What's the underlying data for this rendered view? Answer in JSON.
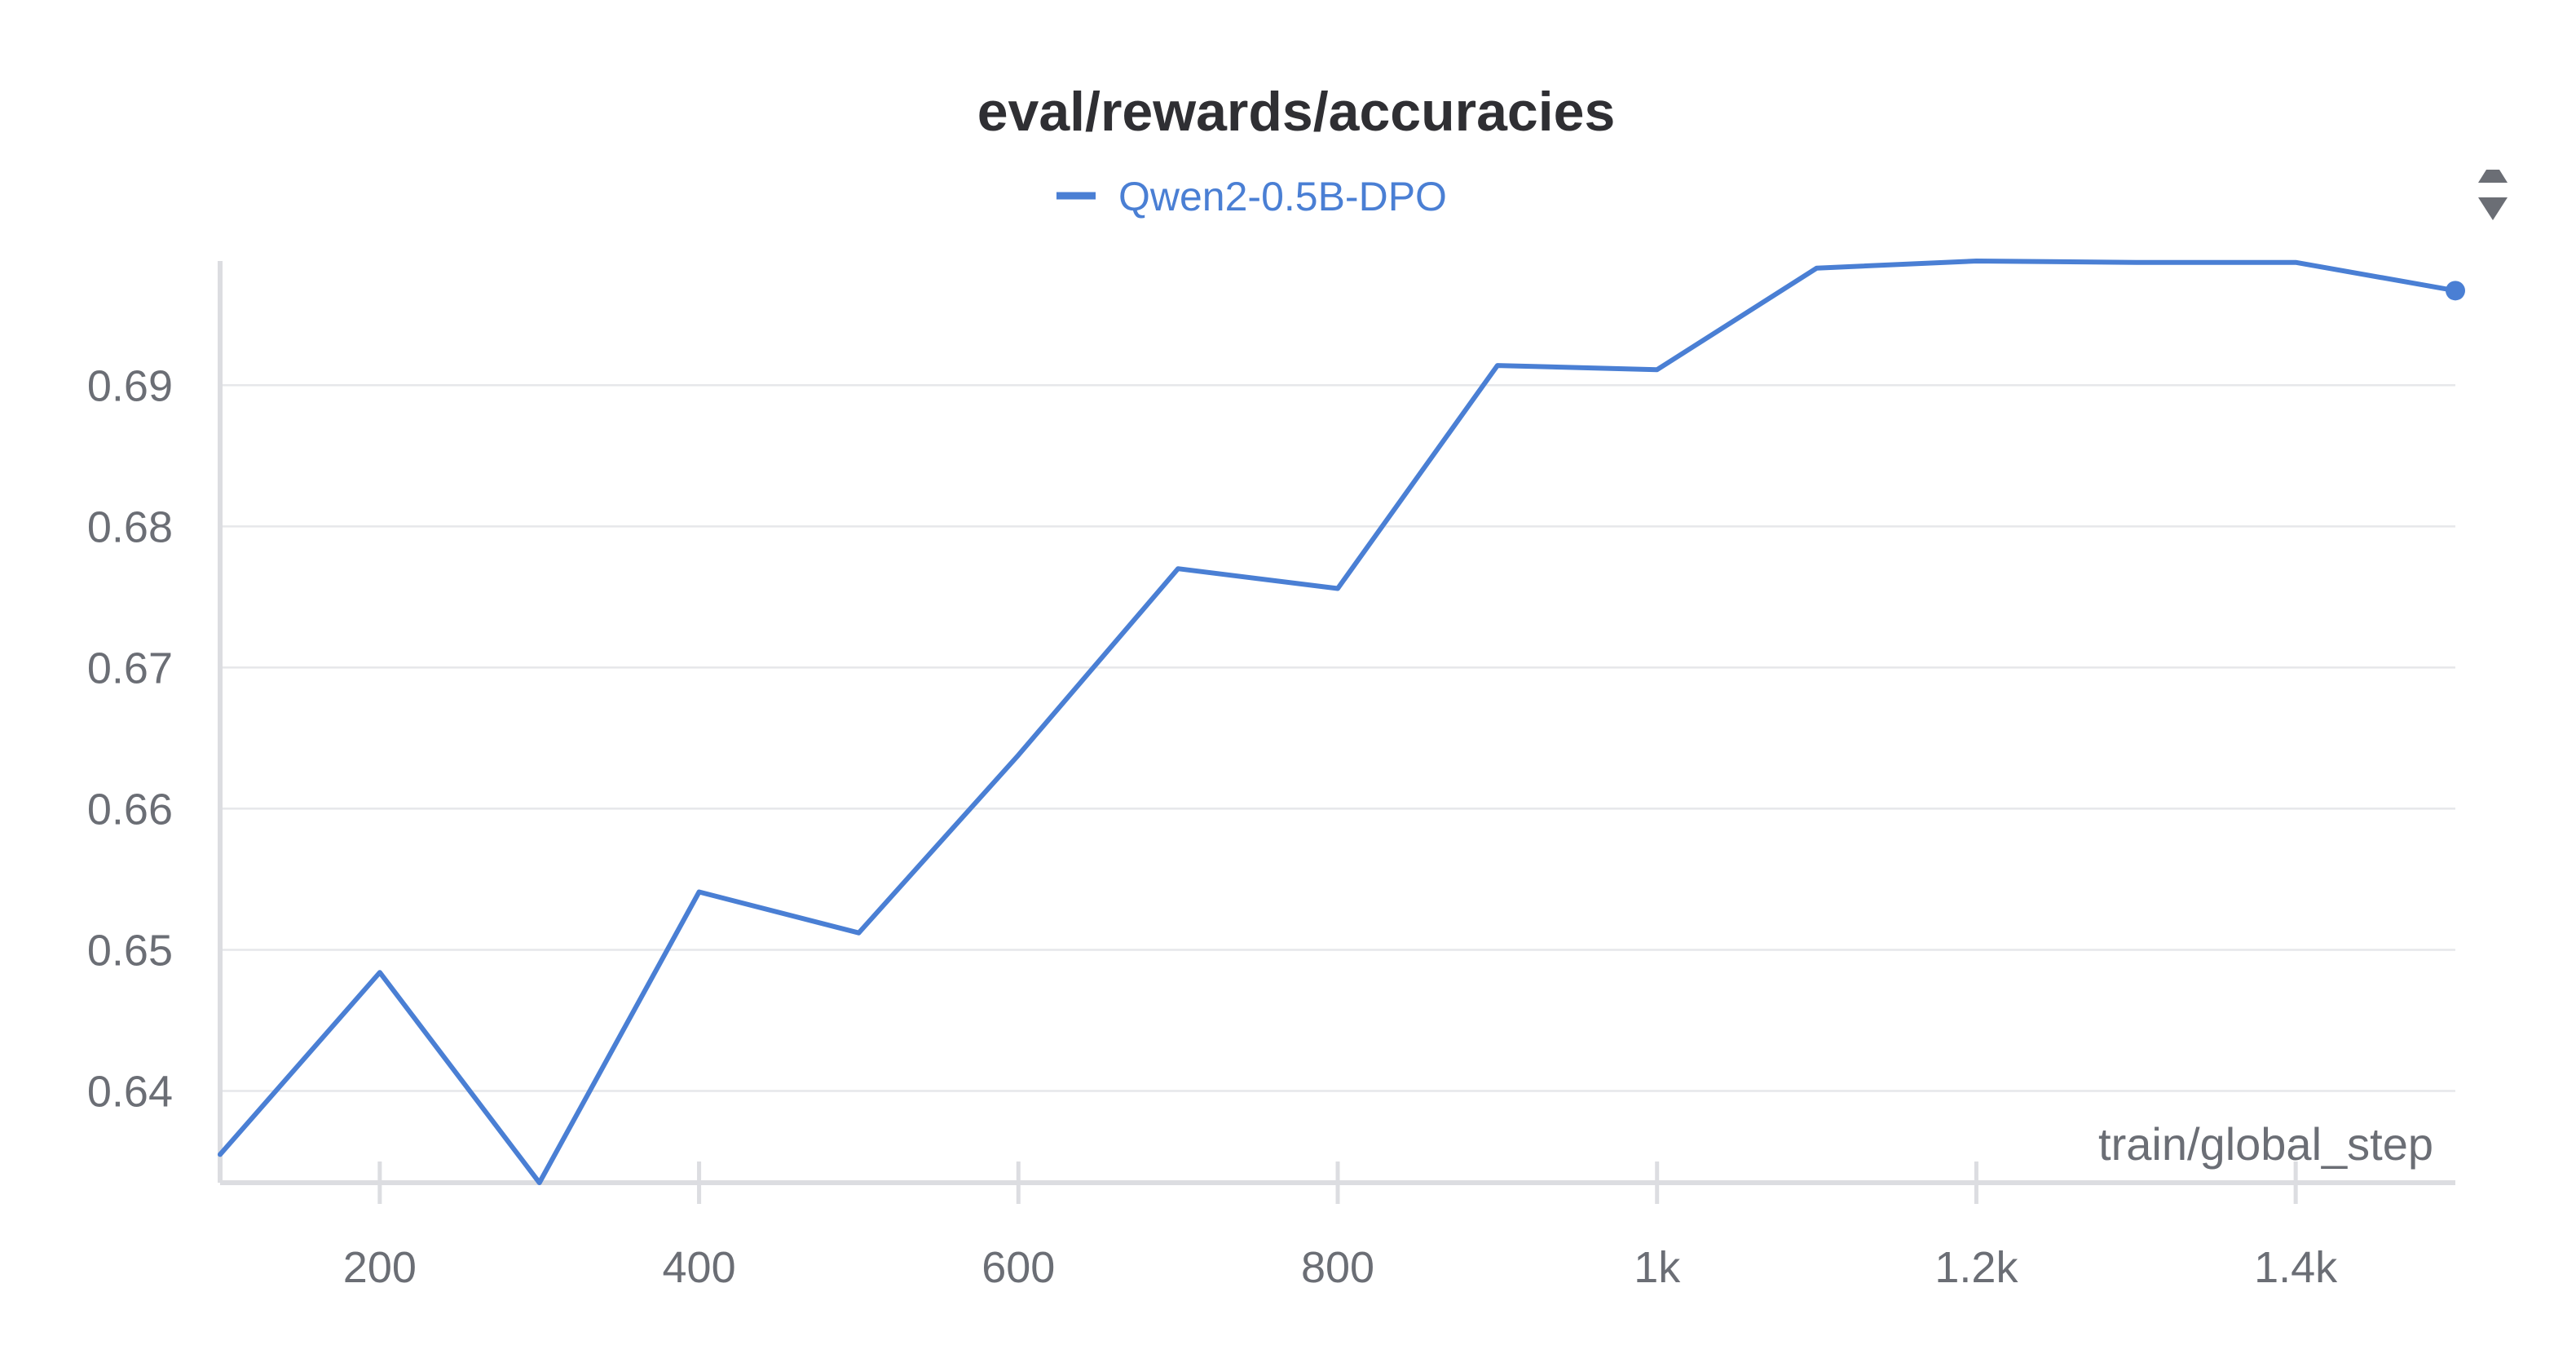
{
  "chart_data": {
    "type": "line",
    "title": "eval/rewards/accuracies",
    "xlabel": "train/global_step",
    "ylabel": "",
    "xlim": [
      100,
      1500
    ],
    "ylim": [
      0.6335,
      0.6988
    ],
    "grid": true,
    "legend_position": "top-center",
    "x_ticks": [
      {
        "value": 200,
        "label": "200"
      },
      {
        "value": 400,
        "label": "400"
      },
      {
        "value": 600,
        "label": "600"
      },
      {
        "value": 800,
        "label": "800"
      },
      {
        "value": 1000,
        "label": "1k"
      },
      {
        "value": 1200,
        "label": "1.2k"
      },
      {
        "value": 1400,
        "label": "1.4k"
      }
    ],
    "y_ticks": [
      {
        "value": 0.64,
        "label": "0.64"
      },
      {
        "value": 0.65,
        "label": "0.65"
      },
      {
        "value": 0.66,
        "label": "0.66"
      },
      {
        "value": 0.67,
        "label": "0.67"
      },
      {
        "value": 0.68,
        "label": "0.68"
      },
      {
        "value": 0.69,
        "label": "0.69"
      }
    ],
    "series": [
      {
        "name": "Qwen2-0.5B-DPO",
        "color": "#4a7fd4",
        "x": [
          100,
          200,
          300,
          400,
          500,
          600,
          700,
          800,
          900,
          1000,
          1100,
          1200,
          1300,
          1400,
          1500
        ],
        "y": [
          0.6355,
          0.6484,
          0.6335,
          0.6541,
          0.6512,
          0.6638,
          0.677,
          0.6756,
          0.6914,
          0.6911,
          0.6983,
          0.6988,
          0.6987,
          0.6987,
          0.6967
        ]
      }
    ]
  },
  "toolbar": {
    "legend_scroll_icon": "up-down-arrows-icon"
  }
}
